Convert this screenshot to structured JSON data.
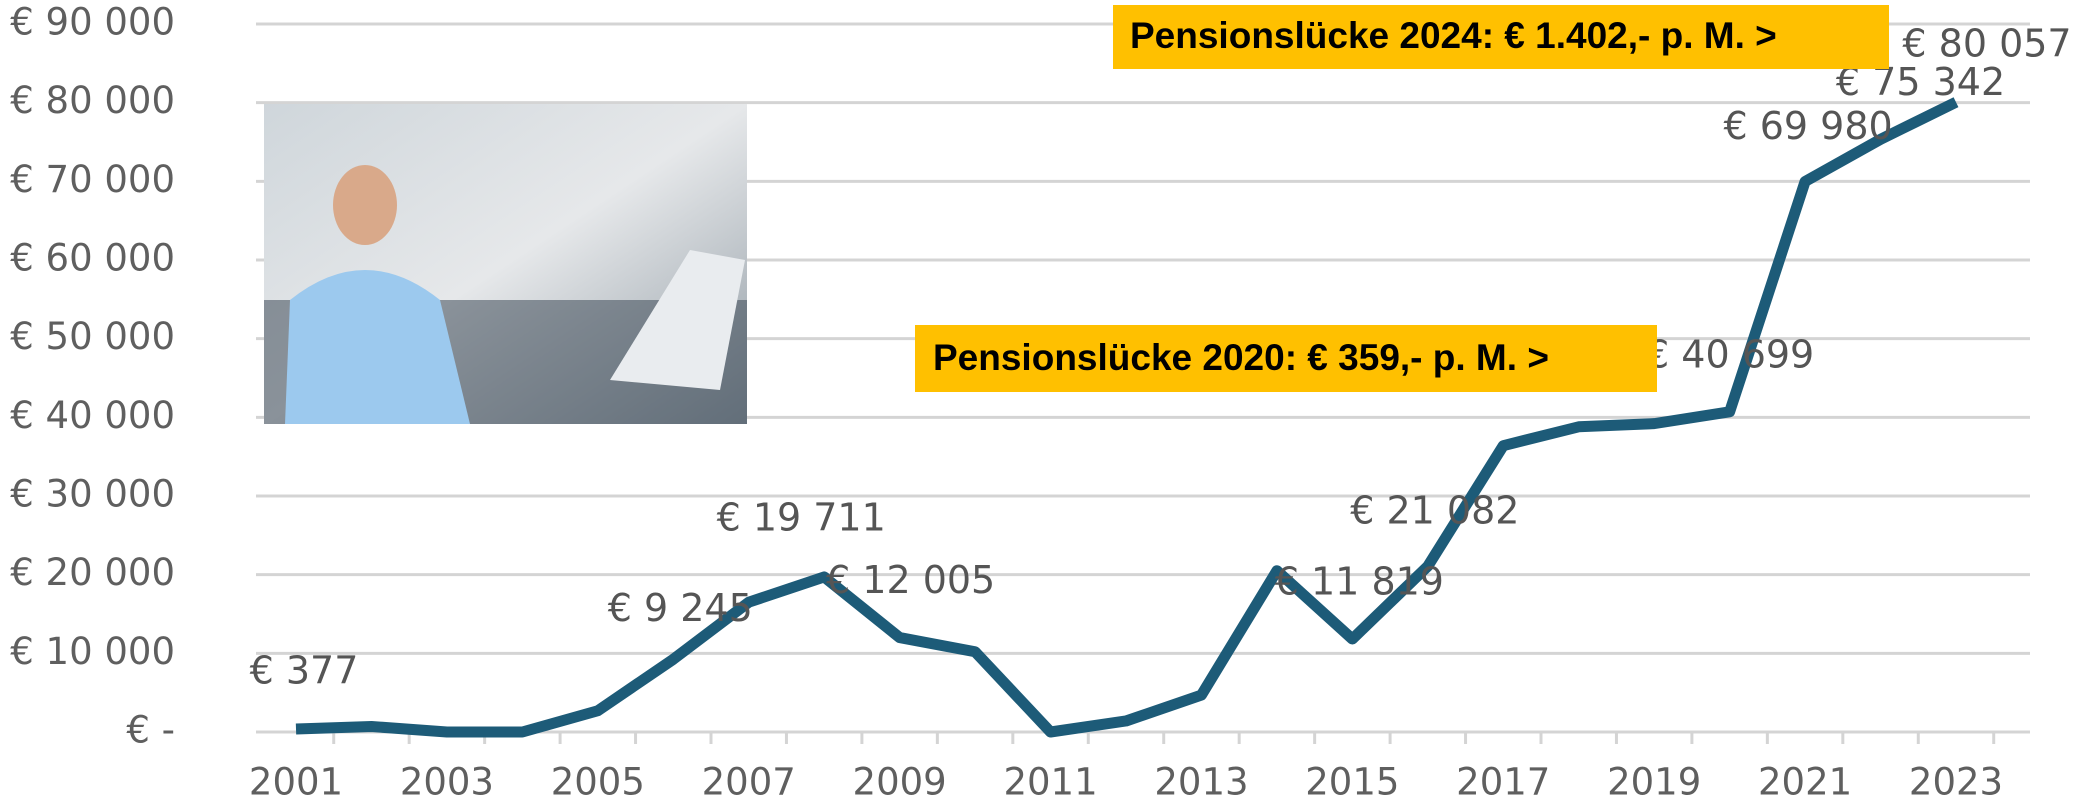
{
  "chart_data": {
    "type": "line",
    "categories": [
      "2001",
      null,
      "2003",
      null,
      "2005",
      null,
      "2007",
      null,
      "2009",
      null,
      "2011",
      null,
      "2013",
      null,
      "2015",
      null,
      "2017",
      null,
      "2019",
      null,
      "2021",
      null,
      "2023"
    ],
    "series": [
      {
        "name": null,
        "color": "#1d5b78",
        "values": [
          377,
          700,
          0,
          0,
          2700,
          9245,
          16500,
          19711,
          12005,
          10200,
          0,
          1400,
          4700,
          20500,
          11819,
          21082,
          36400,
          38800,
          39200,
          40699,
          69980,
          75342,
          80057
        ]
      }
    ],
    "value_labels": [
      "€ 377",
      null,
      null,
      null,
      null,
      "€ 9 245",
      null,
      "€ 19 711",
      "€ 12 005",
      null,
      null,
      null,
      null,
      null,
      "€ 11 819",
      "€ 21 082",
      null,
      null,
      null,
      "€ 40 699",
      "€ 69 980",
      "€ 75 342",
      "€ 80 057"
    ],
    "ylim": [
      0,
      90000
    ],
    "yticks": [
      {
        "value": 0,
        "label": "€ -"
      },
      {
        "value": 10000,
        "label": "€ 10 000"
      },
      {
        "value": 20000,
        "label": "€ 20 000"
      },
      {
        "value": 30000,
        "label": "€ 30 000"
      },
      {
        "value": 40000,
        "label": "€ 40 000"
      },
      {
        "value": 50000,
        "label": "€ 50 000"
      },
      {
        "value": 60000,
        "label": "€ 60 000"
      },
      {
        "value": 70000,
        "label": "€ 70 000"
      },
      {
        "value": 80000,
        "label": "€ 80 000"
      },
      {
        "value": 90000,
        "label": "€ 90 000"
      }
    ],
    "grid": true,
    "annotations": [
      "Pensionslücke 2024: € 1.402,- p. M. >",
      "Pensionslücke 2020: € 359,- p. M. >"
    ]
  }
}
